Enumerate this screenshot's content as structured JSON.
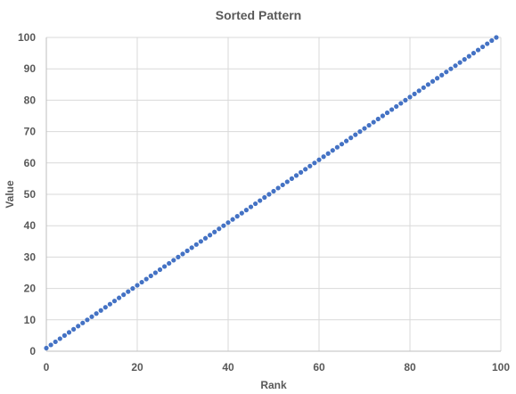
{
  "chart_data": {
    "type": "scatter",
    "title": "Sorted Pattern",
    "xlabel": "Rank",
    "ylabel": "Value",
    "xlim": [
      0,
      100
    ],
    "ylim": [
      0,
      100
    ],
    "xticks": [
      0,
      20,
      40,
      60,
      80,
      100
    ],
    "yticks": [
      0,
      10,
      20,
      30,
      40,
      50,
      60,
      70,
      80,
      90,
      100
    ],
    "grid": true,
    "legend": "none",
    "marker_color": "#4472c4",
    "series": [
      {
        "x": [
          0,
          1,
          2,
          3,
          4,
          5,
          6,
          7,
          8,
          9,
          10,
          11,
          12,
          13,
          14,
          15,
          16,
          17,
          18,
          19,
          20,
          21,
          22,
          23,
          24,
          25,
          26,
          27,
          28,
          29,
          30,
          31,
          32,
          33,
          34,
          35,
          36,
          37,
          38,
          39,
          40,
          41,
          42,
          43,
          44,
          45,
          46,
          47,
          48,
          49,
          50,
          51,
          52,
          53,
          54,
          55,
          56,
          57,
          58,
          59,
          60,
          61,
          62,
          63,
          64,
          65,
          66,
          67,
          68,
          69,
          70,
          71,
          72,
          73,
          74,
          75,
          76,
          77,
          78,
          79,
          80,
          81,
          82,
          83,
          84,
          85,
          86,
          87,
          88,
          89,
          90,
          91,
          92,
          93,
          94,
          95,
          96,
          97,
          98,
          99
        ],
        "y": [
          1,
          2,
          3,
          4,
          5,
          6,
          7,
          8,
          9,
          10,
          11,
          12,
          13,
          14,
          15,
          16,
          17,
          18,
          19,
          20,
          21,
          22,
          23,
          24,
          25,
          26,
          27,
          28,
          29,
          30,
          31,
          32,
          33,
          34,
          35,
          36,
          37,
          38,
          39,
          40,
          41,
          42,
          43,
          44,
          45,
          46,
          47,
          48,
          49,
          50,
          51,
          52,
          53,
          54,
          55,
          56,
          57,
          58,
          59,
          60,
          61,
          62,
          63,
          64,
          65,
          66,
          67,
          68,
          69,
          70,
          71,
          72,
          73,
          74,
          75,
          76,
          77,
          78,
          79,
          80,
          81,
          82,
          83,
          84,
          85,
          86,
          87,
          88,
          89,
          90,
          91,
          92,
          93,
          94,
          95,
          96,
          97,
          98,
          99,
          100
        ]
      }
    ]
  }
}
